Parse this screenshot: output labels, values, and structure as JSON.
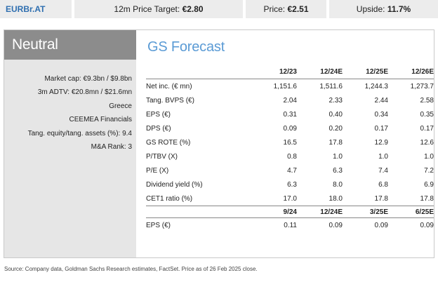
{
  "header": {
    "ticker": "EURBr.AT",
    "target_label": "12m Price Target:",
    "target_value": "€2.80",
    "price_label": "Price:",
    "price_value": "€2.51",
    "upside_label": "Upside:",
    "upside_value": "11.7%"
  },
  "rating": "Neutral",
  "stats": [
    "Market cap: €9.3bn / $9.8bn",
    "3m ADTV: €20.8mn / $21.6mn",
    "Greece",
    "CEEMEA Financials",
    "Tang. equity/tang. assets (%): 9.4",
    "M&A Rank: 3"
  ],
  "forecast": {
    "title": "GS Forecast",
    "columns": [
      "12/23",
      "12/24E",
      "12/25E",
      "12/26E"
    ],
    "rows": [
      {
        "label": "Net inc. (€ mn)",
        "values": [
          "1,151.6",
          "1,511.6",
          "1,244.3",
          "1,273.7"
        ]
      },
      {
        "label": "Tang. BVPS (€)",
        "values": [
          "2.04",
          "2.33",
          "2.44",
          "2.58"
        ]
      },
      {
        "label": "EPS (€)",
        "values": [
          "0.31",
          "0.40",
          "0.34",
          "0.35"
        ]
      },
      {
        "label": "DPS (€)",
        "values": [
          "0.09",
          "0.20",
          "0.17",
          "0.17"
        ]
      },
      {
        "label": "GS ROTE (%)",
        "values": [
          "16.5",
          "17.8",
          "12.9",
          "12.6"
        ]
      },
      {
        "label": "P/TBV (X)",
        "values": [
          "0.8",
          "1.0",
          "1.0",
          "1.0"
        ]
      },
      {
        "label": "P/E (X)",
        "values": [
          "4.7",
          "6.3",
          "7.4",
          "7.2"
        ]
      },
      {
        "label": "Dividend yield (%)",
        "values": [
          "6.3",
          "8.0",
          "6.8",
          "6.9"
        ]
      },
      {
        "label": "CET1 ratio (%)",
        "values": [
          "17.0",
          "18.0",
          "17.8",
          "17.8"
        ]
      }
    ],
    "quarter_columns": [
      "9/24",
      "12/24E",
      "3/25E",
      "6/25E"
    ],
    "quarter_rows": [
      {
        "label": "EPS (€)",
        "values": [
          "0.11",
          "0.09",
          "0.09",
          "0.09"
        ]
      }
    ]
  },
  "source": "Source: Company data, Goldman Sachs Research estimates, FactSet. Price as of 26 Feb 2025 close."
}
